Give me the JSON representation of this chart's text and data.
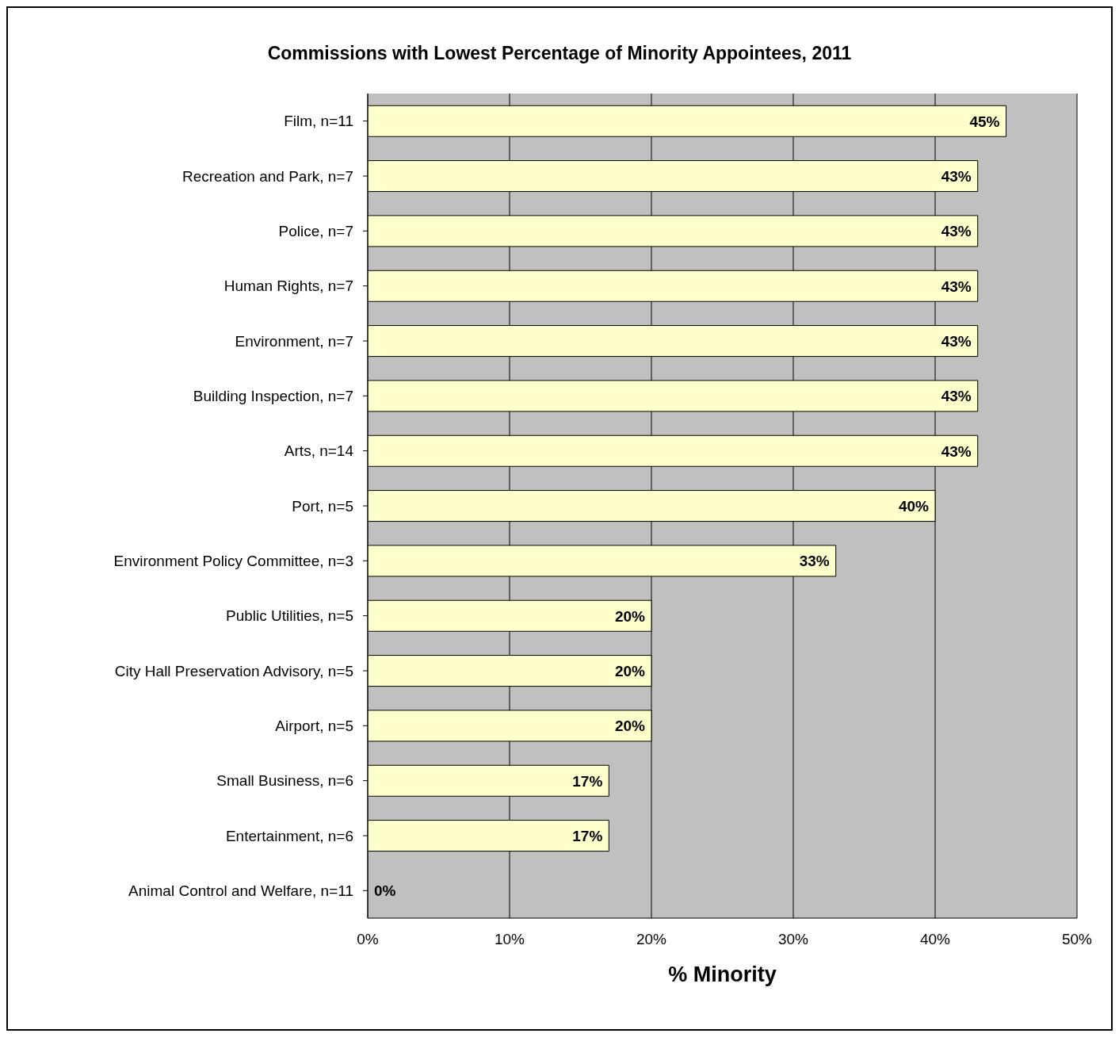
{
  "chart_data": {
    "type": "bar",
    "orientation": "horizontal",
    "title": "Commissions with Lowest Percentage of Minority Appointees, 2011",
    "xlabel": "% Minority",
    "categories": [
      "Film, n=11",
      "Recreation and Park, n=7",
      "Police, n=7",
      "Human Rights, n=7",
      "Environment, n=7",
      "Building Inspection, n=7",
      "Arts, n=14",
      "Port, n=5",
      "Environment Policy Committee, n=3",
      "Public Utilities, n=5",
      "City Hall Preservation Advisory, n=5",
      "Airport, n=5",
      "Small Business, n=6",
      "Entertainment, n=6",
      "Animal Control and Welfare, n=11"
    ],
    "values": [
      45,
      43,
      43,
      43,
      43,
      43,
      43,
      40,
      33,
      20,
      20,
      20,
      17,
      17,
      0
    ],
    "value_labels": [
      "45%",
      "43%",
      "43%",
      "43%",
      "43%",
      "43%",
      "43%",
      "40%",
      "33%",
      "20%",
      "20%",
      "20%",
      "17%",
      "17%",
      "0%"
    ],
    "color": "#ffffcc",
    "xlim": [
      0,
      50
    ],
    "xticks": [
      {
        "value": 0,
        "label": "0%"
      },
      {
        "value": 10,
        "label": "10%"
      },
      {
        "value": 20,
        "label": "20%"
      },
      {
        "value": 30,
        "label": "30%"
      },
      {
        "value": 40,
        "label": "40%"
      },
      {
        "value": 50,
        "label": "50%"
      }
    ],
    "grid": "x"
  }
}
